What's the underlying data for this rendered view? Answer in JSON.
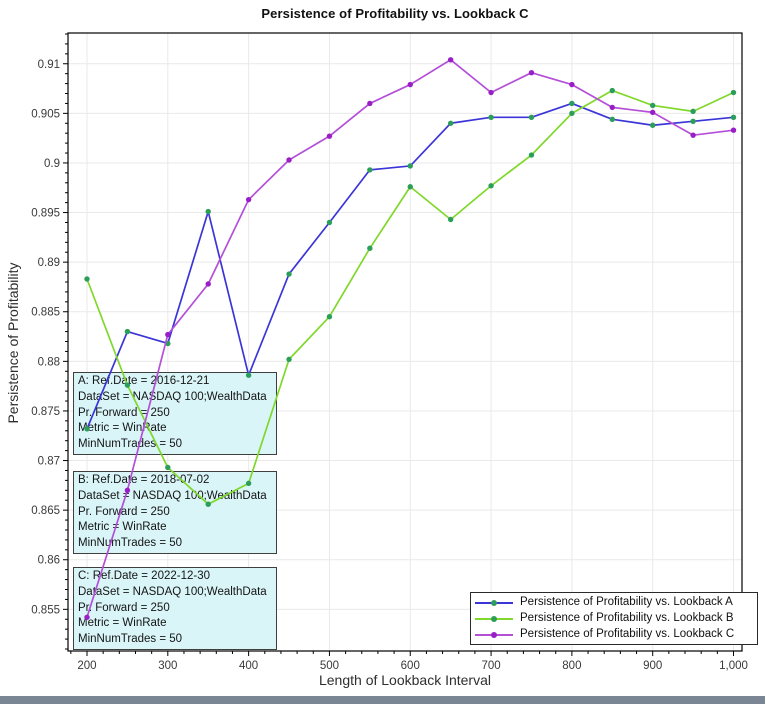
{
  "title": "Persistence of Profitability vs. Lookback C",
  "x_axis": {
    "label": "Length of Lookback Interval",
    "tick_labels": [
      "200",
      "300",
      "400",
      "500",
      "600",
      "700",
      "800",
      "900",
      "1,000"
    ],
    "tick_values": [
      200,
      300,
      400,
      500,
      600,
      700,
      800,
      900,
      1000
    ],
    "minor_step": 20,
    "range": [
      176.5,
      1010.5
    ]
  },
  "y_axis": {
    "label": "Persistence of Profitability",
    "tick_labels": [
      "0.91",
      "0.905",
      "0.9",
      "0.895",
      "0.89",
      "0.885",
      "0.88",
      "0.875",
      "0.87",
      "0.865",
      "0.86",
      "0.855"
    ],
    "tick_values": [
      0.91,
      0.905,
      0.9,
      0.895,
      0.89,
      0.885,
      0.88,
      0.875,
      0.87,
      0.865,
      0.86,
      0.855
    ],
    "minor_step": 0.001,
    "range": [
      0.8508,
      0.9131
    ]
  },
  "annotations": [
    {
      "id": "A",
      "lines": [
        "A: Ref.Date = 2016-12-21",
        "DataSet = NASDAQ 100;WealthData",
        "Pr. Forward = 250",
        "Metric = WinRate",
        "MinNumTrades = 50"
      ]
    },
    {
      "id": "B",
      "lines": [
        "B: Ref.Date = 2018-07-02",
        "DataSet = NASDAQ 100;WealthData",
        "Pr. Forward = 250",
        "Metric = WinRate",
        "MinNumTrades = 50"
      ]
    },
    {
      "id": "C",
      "lines": [
        "C: Ref.Date = 2022-12-30",
        "DataSet = NASDAQ 100;WealthData",
        "Pr. Forward = 250",
        "Metric = WinRate",
        "MinNumTrades = 50"
      ]
    }
  ],
  "colors": {
    "grid": "#e9e9e9",
    "spine": "#000000",
    "tick_text": "#3a3a3a",
    "annotation_bg": "#d9f5f8",
    "annotation_border": "#3f3f3f",
    "bottom_bar": "#7b8694"
  },
  "chart_data": {
    "type": "line",
    "title": "Persistence of Profitability vs. Lookback C",
    "xlabel": "Length of Lookback Interval",
    "ylabel": "Persistence of Profitability",
    "xlim": [
      176.5,
      1010.5
    ],
    "ylim": [
      0.8508,
      0.9131
    ],
    "grid": true,
    "legend_position": "bottom-right",
    "x": [
      200,
      250,
      300,
      350,
      400,
      450,
      500,
      550,
      600,
      650,
      700,
      750,
      800,
      850,
      900,
      950,
      1000
    ],
    "series": [
      {
        "name": "Persistence of Profitability vs. Lookback A",
        "line_color": "#3b35d8",
        "marker_color": "#2b9e5a",
        "values": [
          0.8732,
          0.883,
          0.8818,
          0.8951,
          0.8786,
          0.8888,
          0.894,
          0.8993,
          0.8997,
          0.904,
          0.9046,
          0.9046,
          0.906,
          0.9044,
          0.9038,
          0.9042,
          0.9046
        ]
      },
      {
        "name": "Persistence of Profitability vs. Lookback B",
        "line_color": "#7fd82a",
        "marker_color": "#2b9e5a",
        "values": [
          0.8883,
          0.8776,
          0.8693,
          0.8656,
          0.8677,
          0.8802,
          0.8845,
          0.8914,
          0.8976,
          0.8943,
          0.8977,
          0.9008,
          0.905,
          0.9073,
          0.9058,
          0.9052,
          0.9071
        ]
      },
      {
        "name": "Persistence of Profitability vs. Lookback C",
        "line_color": "#b44fd8",
        "marker_color": "#9a1ec6",
        "values": [
          0.8542,
          0.867,
          0.8827,
          0.8878,
          0.8963,
          0.9003,
          0.9027,
          0.906,
          0.9079,
          0.9104,
          0.9071,
          0.9091,
          0.9079,
          0.9056,
          0.9051,
          0.9028,
          0.9033
        ]
      }
    ]
  }
}
